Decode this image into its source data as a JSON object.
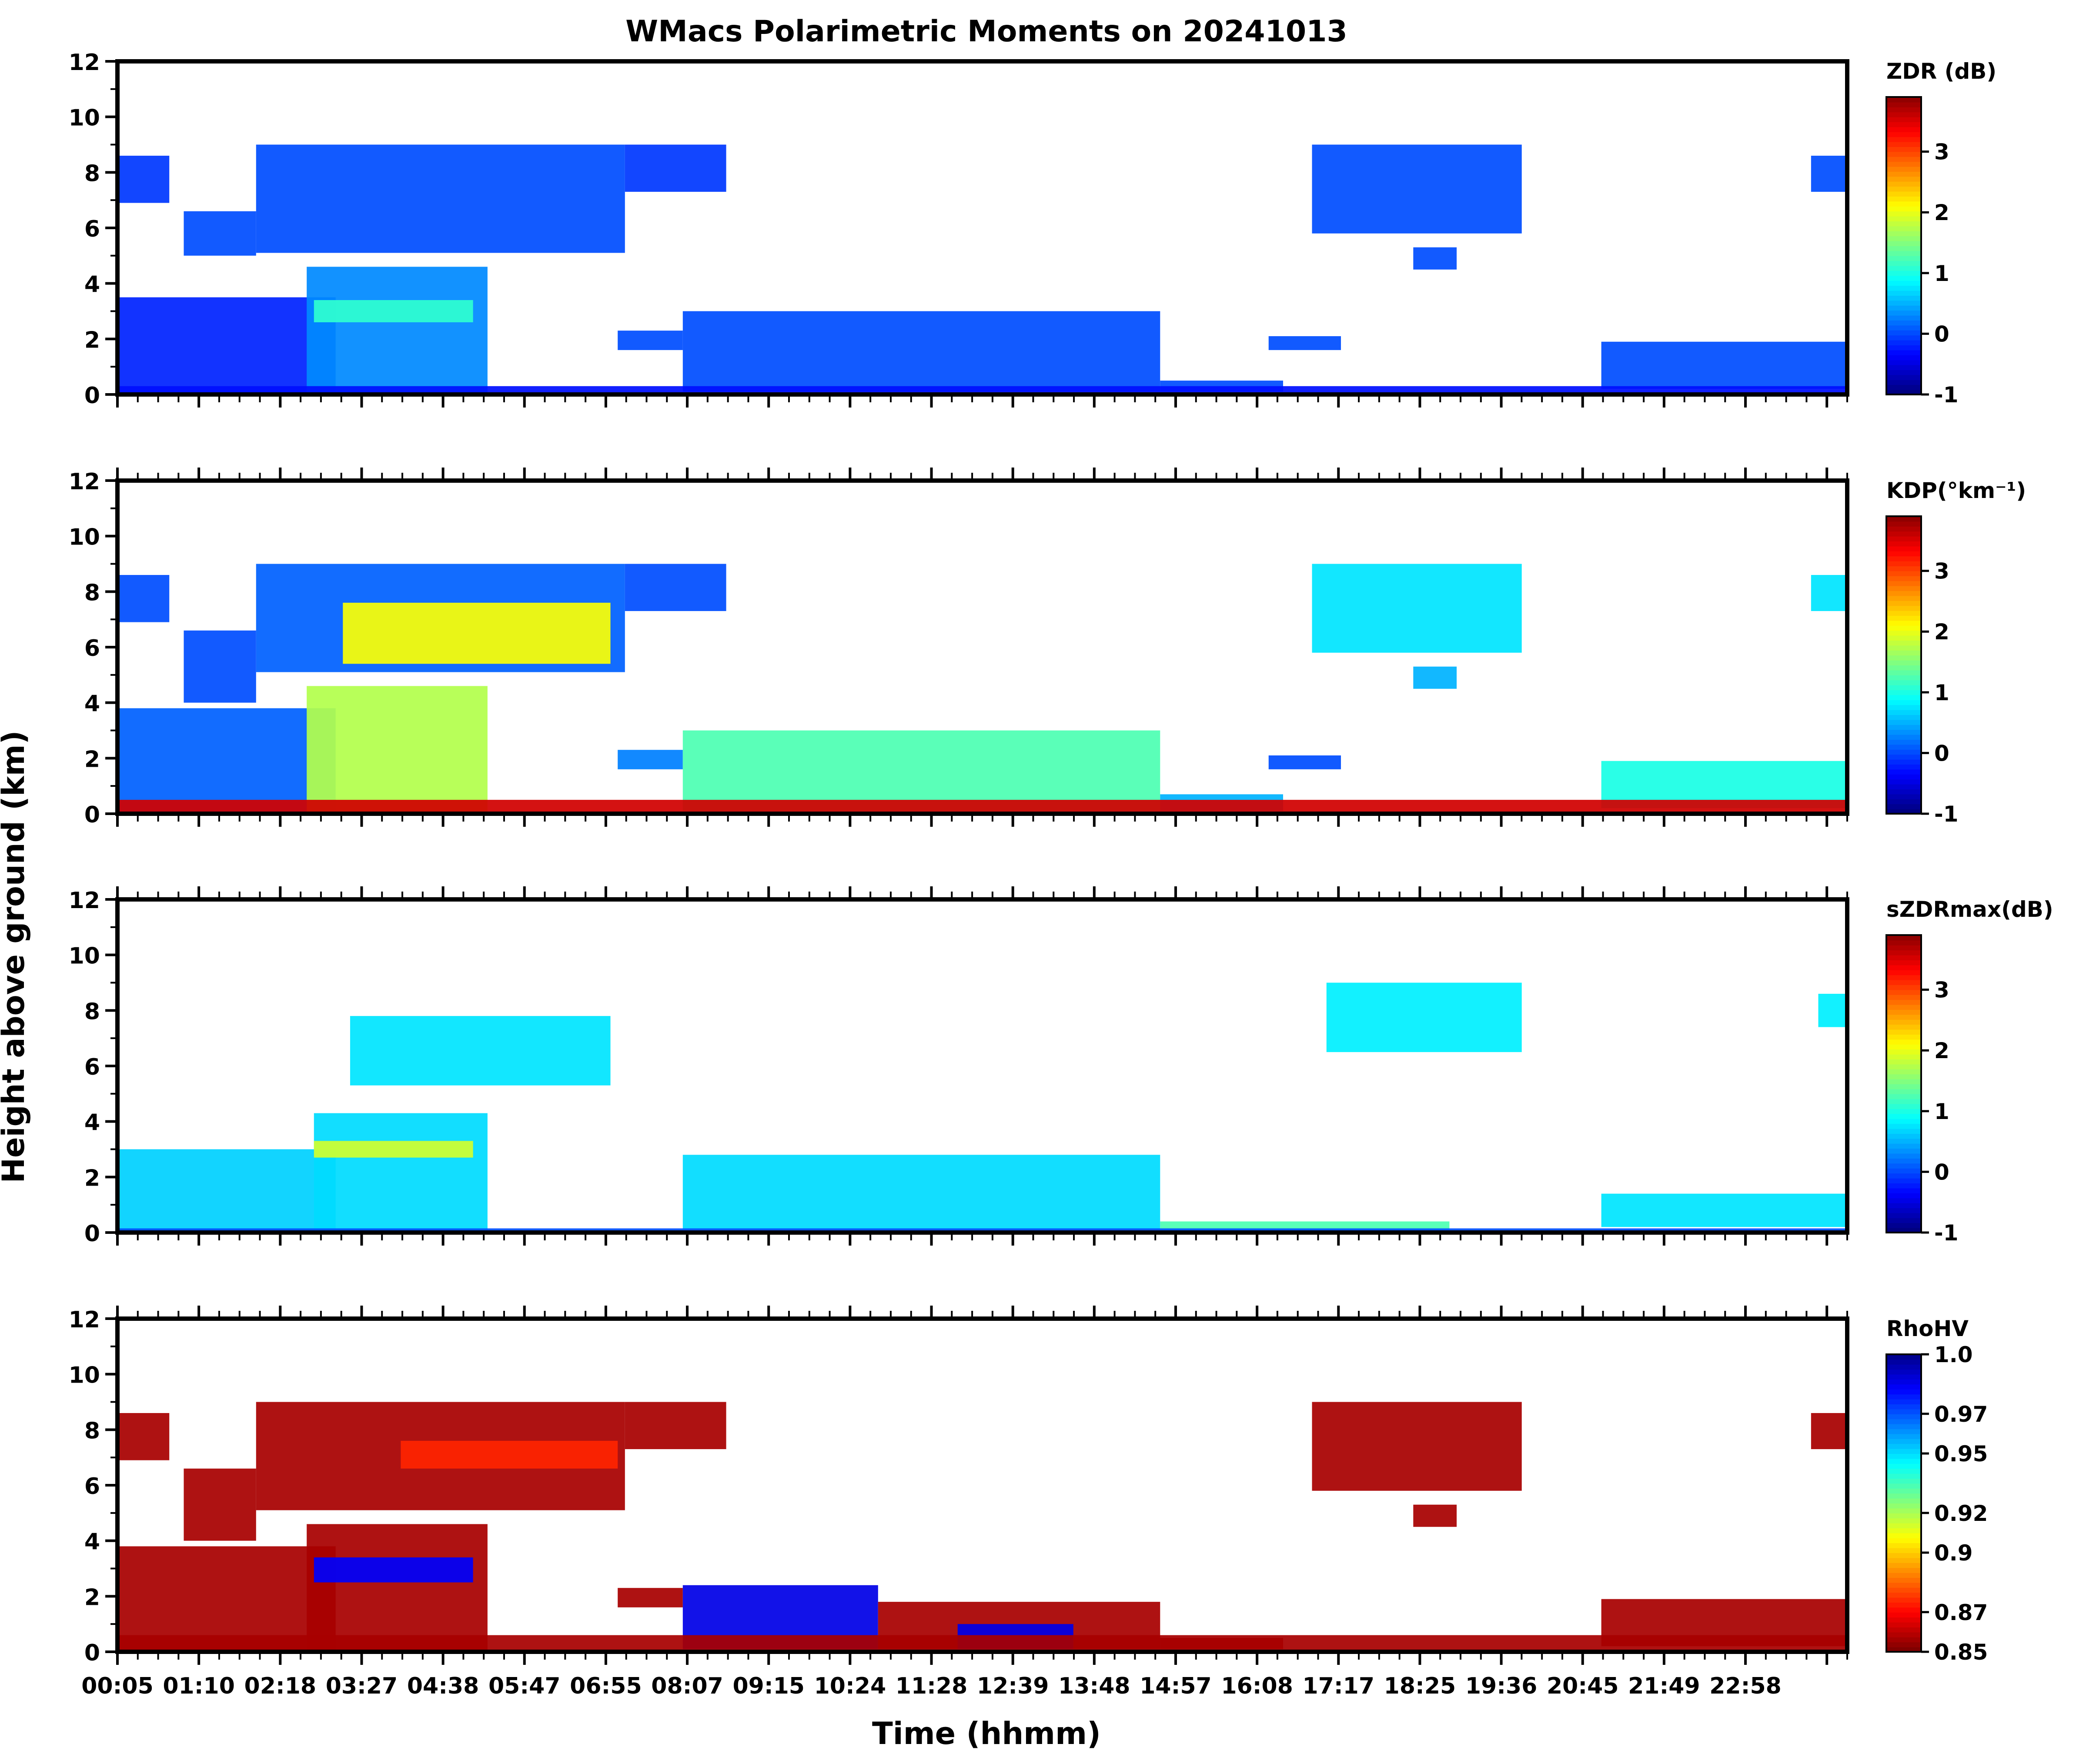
{
  "chart_data": {
    "type": "heatmap",
    "title": "WMacs Polarimetric Moments on 20241013",
    "xlabel": "Time (hhmm)",
    "ylabel": "Height above ground (km)",
    "x_ticks": [
      "00:05",
      "01:10",
      "02:18",
      "03:27",
      "04:38",
      "05:47",
      "06:55",
      "08:07",
      "09:15",
      "10:24",
      "11:28",
      "12:39",
      "13:48",
      "14:57",
      "16:08",
      "17:17",
      "18:25",
      "19:36",
      "20:45",
      "21:49",
      "22:58"
    ],
    "x_range_hours": [
      0.083,
      24.0
    ],
    "y_ticks": [
      0,
      2,
      4,
      6,
      8,
      10,
      12
    ],
    "ylim": [
      0,
      12
    ],
    "panels": [
      {
        "name": "ZDR",
        "colorbar_label": "ZDR (dB)",
        "colorbar_ticks": [
          "-1",
          "0",
          "1",
          "2",
          "3"
        ],
        "colorbar_range": [
          -1,
          3.9
        ],
        "colormap": "jet",
        "echo_regions": [
          {
            "t": [
              0.1,
              0.8
            ],
            "z": [
              6.9,
              8.6
            ],
            "level": 0.18
          },
          {
            "t": [
              1.0,
              2.0
            ],
            "z": [
              5.0,
              6.6
            ],
            "level": 0.2
          },
          {
            "t": [
              2.0,
              7.1
            ],
            "z": [
              5.1,
              9.0
            ],
            "level": 0.2
          },
          {
            "t": [
              7.1,
              8.5
            ],
            "z": [
              7.3,
              9.0
            ],
            "level": 0.18
          },
          {
            "t": [
              0.1,
              3.1
            ],
            "z": [
              0,
              3.5
            ],
            "level": 0.16
          },
          {
            "t": [
              2.7,
              5.2
            ],
            "z": [
              0,
              4.6
            ],
            "level": 0.26
          },
          {
            "t": [
              2.8,
              5.0
            ],
            "z": [
              2.6,
              3.4
            ],
            "level": 0.42
          },
          {
            "t": [
              7.0,
              7.9
            ],
            "z": [
              1.6,
              2.3
            ],
            "level": 0.2
          },
          {
            "t": [
              7.9,
              14.5
            ],
            "z": [
              0.1,
              3.0
            ],
            "level": 0.2
          },
          {
            "t": [
              14.5,
              16.2
            ],
            "z": [
              0.1,
              0.5
            ],
            "level": 0.2
          },
          {
            "t": [
              16.0,
              17.0
            ],
            "z": [
              1.6,
              2.1
            ],
            "level": 0.2
          },
          {
            "t": [
              16.6,
              19.5
            ],
            "z": [
              5.8,
              9.0
            ],
            "level": 0.2
          },
          {
            "t": [
              18.0,
              18.6
            ],
            "z": [
              4.5,
              5.3
            ],
            "level": 0.2
          },
          {
            "t": [
              20.6,
              24.0
            ],
            "z": [
              0.2,
              1.9
            ],
            "level": 0.2
          },
          {
            "t": [
              23.5,
              24.0
            ],
            "z": [
              7.3,
              8.6
            ],
            "level": 0.2
          },
          {
            "t": [
              0.1,
              24.0
            ],
            "z": [
              0,
              0.3
            ],
            "level": 0.14
          }
        ]
      },
      {
        "name": "KDP",
        "colorbar_label": "KDP(°km⁻¹)",
        "colorbar_ticks": [
          "-1",
          "0",
          "1",
          "2",
          "3"
        ],
        "colorbar_range": [
          -1,
          3.9
        ],
        "colormap": "jet",
        "echo_regions": [
          {
            "t": [
              0.1,
              0.8
            ],
            "z": [
              6.9,
              8.6
            ],
            "level": 0.2
          },
          {
            "t": [
              1.0,
              2.0
            ],
            "z": [
              4.0,
              6.6
            ],
            "level": 0.2
          },
          {
            "t": [
              2.0,
              7.1
            ],
            "z": [
              5.1,
              9.0
            ],
            "level": 0.22
          },
          {
            "t": [
              3.2,
              6.9
            ],
            "z": [
              5.4,
              7.6
            ],
            "level": 0.62
          },
          {
            "t": [
              7.1,
              8.5
            ],
            "z": [
              7.3,
              9.0
            ],
            "level": 0.2
          },
          {
            "t": [
              0.1,
              3.1
            ],
            "z": [
              0,
              3.8
            ],
            "level": 0.22
          },
          {
            "t": [
              2.7,
              5.2
            ],
            "z": [
              0,
              4.6
            ],
            "level": 0.55
          },
          {
            "t": [
              7.0,
              7.9
            ],
            "z": [
              1.6,
              2.3
            ],
            "level": 0.25
          },
          {
            "t": [
              7.9,
              14.5
            ],
            "z": [
              0.1,
              3.0
            ],
            "level": 0.45
          },
          {
            "t": [
              14.5,
              16.2
            ],
            "z": [
              0.1,
              0.7
            ],
            "level": 0.3
          },
          {
            "t": [
              16.0,
              17.0
            ],
            "z": [
              1.6,
              2.1
            ],
            "level": 0.2
          },
          {
            "t": [
              16.6,
              19.5
            ],
            "z": [
              5.8,
              9.0
            ],
            "level": 0.35
          },
          {
            "t": [
              18.0,
              18.6
            ],
            "z": [
              4.5,
              5.3
            ],
            "level": 0.3
          },
          {
            "t": [
              20.6,
              24.0
            ],
            "z": [
              0.2,
              1.9
            ],
            "level": 0.4
          },
          {
            "t": [
              23.5,
              24.0
            ],
            "z": [
              7.3,
              8.6
            ],
            "level": 0.35
          },
          {
            "t": [
              0.1,
              24.0
            ],
            "z": [
              0,
              0.5
            ],
            "level": 0.92
          }
        ]
      },
      {
        "name": "sZDRmax",
        "colorbar_label": "sZDRmax(dB)",
        "colorbar_ticks": [
          "-1",
          "0",
          "1",
          "2",
          "3"
        ],
        "colorbar_range": [
          -1,
          3.9
        ],
        "colormap": "jet",
        "echo_regions": [
          {
            "t": [
              3.3,
              6.9
            ],
            "z": [
              5.3,
              7.8
            ],
            "level": 0.35
          },
          {
            "t": [
              0.1,
              3.1
            ],
            "z": [
              0,
              3.0
            ],
            "level": 0.33
          },
          {
            "t": [
              2.8,
              5.2
            ],
            "z": [
              0,
              4.3
            ],
            "level": 0.34
          },
          {
            "t": [
              2.8,
              5.0
            ],
            "z": [
              2.7,
              3.3
            ],
            "level": 0.58
          },
          {
            "t": [
              7.9,
              14.5
            ],
            "z": [
              0.1,
              2.8
            ],
            "level": 0.34
          },
          {
            "t": [
              14.5,
              18.5
            ],
            "z": [
              0.05,
              0.4
            ],
            "level": 0.45
          },
          {
            "t": [
              16.8,
              19.5
            ],
            "z": [
              6.5,
              9.0
            ],
            "level": 0.36
          },
          {
            "t": [
              20.6,
              24.0
            ],
            "z": [
              0.2,
              1.4
            ],
            "level": 0.35
          },
          {
            "t": [
              23.6,
              24.0
            ],
            "z": [
              7.4,
              8.6
            ],
            "level": 0.36
          },
          {
            "t": [
              0.1,
              24.0
            ],
            "z": [
              0,
              0.15
            ],
            "level": 0.2
          }
        ]
      },
      {
        "name": "RhoHV",
        "colorbar_label": "RhoHV",
        "colorbar_ticks": [
          "0.85",
          "0.87",
          "0.9",
          "0.92",
          "0.95",
          "0.97",
          "1.0"
        ],
        "colorbar_range": [
          0.85,
          1.0
        ],
        "colormap": "jet_r",
        "echo_regions": [
          {
            "t": [
              0.1,
              0.8
            ],
            "z": [
              6.9,
              8.6
            ],
            "level": 0.96
          },
          {
            "t": [
              1.0,
              2.0
            ],
            "z": [
              4.0,
              6.6
            ],
            "level": 0.96
          },
          {
            "t": [
              2.0,
              7.1
            ],
            "z": [
              5.1,
              9.0
            ],
            "level": 0.96
          },
          {
            "t": [
              4.0,
              7.0
            ],
            "z": [
              6.6,
              7.6
            ],
            "level": 0.84
          },
          {
            "t": [
              7.1,
              8.5
            ],
            "z": [
              7.3,
              9.0
            ],
            "level": 0.96
          },
          {
            "t": [
              0.1,
              3.1
            ],
            "z": [
              0,
              3.8
            ],
            "level": 0.96
          },
          {
            "t": [
              2.7,
              5.2
            ],
            "z": [
              0,
              4.6
            ],
            "level": 0.96
          },
          {
            "t": [
              2.8,
              5.0
            ],
            "z": [
              2.5,
              3.4
            ],
            "level": 0.12
          },
          {
            "t": [
              7.0,
              7.9
            ],
            "z": [
              1.6,
              2.3
            ],
            "level": 0.96
          },
          {
            "t": [
              7.9,
              10.6
            ],
            "z": [
              0.1,
              2.4
            ],
            "level": 0.1
          },
          {
            "t": [
              10.6,
              14.5
            ],
            "z": [
              0.1,
              1.8
            ],
            "level": 0.96
          },
          {
            "t": [
              11.7,
              13.3
            ],
            "z": [
              0.1,
              1.0
            ],
            "level": 0.1
          },
          {
            "t": [
              14.5,
              16.2
            ],
            "z": [
              0.1,
              0.5
            ],
            "level": 0.96
          },
          {
            "t": [
              16.6,
              19.5
            ],
            "z": [
              5.8,
              9.0
            ],
            "level": 0.96
          },
          {
            "t": [
              18.0,
              18.6
            ],
            "z": [
              4.5,
              5.3
            ],
            "level": 0.96
          },
          {
            "t": [
              20.6,
              24.0
            ],
            "z": [
              0.2,
              1.9
            ],
            "level": 0.96
          },
          {
            "t": [
              23.5,
              24.0
            ],
            "z": [
              7.3,
              8.6
            ],
            "level": 0.96
          },
          {
            "t": [
              0.1,
              24.0
            ],
            "z": [
              0,
              0.6
            ],
            "level": 0.96
          }
        ]
      }
    ]
  }
}
